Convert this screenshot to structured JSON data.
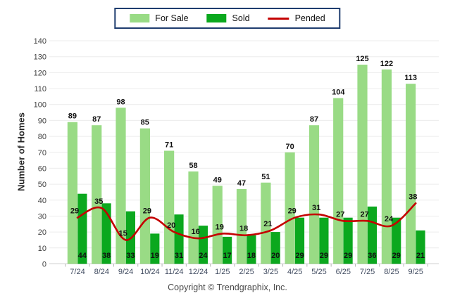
{
  "legend": {
    "items": [
      {
        "label": "For Sale",
        "color": "#99DB85",
        "style": "swatch"
      },
      {
        "label": "Sold",
        "color": "#0BA81E",
        "style": "swatch"
      },
      {
        "label": "Pended",
        "color": "#C40000",
        "style": "line"
      }
    ],
    "border_color": "#1E3C6E"
  },
  "y_axis": {
    "title": "Number of Homes",
    "min": 0,
    "max": 140,
    "step": 10
  },
  "footer": {
    "copyright": "Copyright © Trendgraphix, Inc."
  },
  "chart_data": {
    "type": "bar",
    "title": "",
    "xlabel": "",
    "ylabel": "Number of Homes",
    "ylim": [
      0,
      140
    ],
    "ystep": 10,
    "grid": true,
    "legend_position": "top",
    "categories": [
      "7/24",
      "8/24",
      "9/24",
      "10/24",
      "11/24",
      "12/24",
      "1/25",
      "2/25",
      "3/25",
      "4/25",
      "5/25",
      "6/25",
      "7/25",
      "8/25",
      "9/25"
    ],
    "series": [
      {
        "name": "For Sale",
        "type": "bar",
        "color": "#99DB85",
        "values": [
          89,
          87,
          98,
          85,
          71,
          58,
          49,
          47,
          51,
          70,
          87,
          104,
          125,
          122,
          113
        ]
      },
      {
        "name": "Sold",
        "type": "bar",
        "color": "#0BA81E",
        "values": [
          44,
          38,
          33,
          19,
          31,
          24,
          17,
          18,
          20,
          29,
          29,
          29,
          36,
          29,
          21
        ]
      },
      {
        "name": "Pended",
        "type": "line",
        "color": "#C40000",
        "values": [
          29,
          35,
          15,
          29,
          20,
          16,
          19,
          18,
          21,
          29,
          31,
          27,
          27,
          24,
          38
        ]
      }
    ]
  }
}
